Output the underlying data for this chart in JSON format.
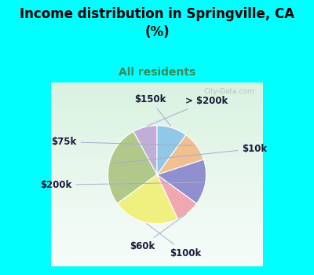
{
  "title": "Income distribution in Springville, CA\n(%)",
  "subtitle": "All residents",
  "title_color": "#000000",
  "subtitle_color": "#3a8a5a",
  "background_cyan": "#00ffff",
  "background_chart": "#e0f0e8",
  "labels": [
    "> $200k",
    "$10k",
    "$100k",
    "$60k",
    "$200k",
    "$75k",
    "$150k"
  ],
  "values": [
    8,
    27,
    22,
    8,
    15,
    10,
    10
  ],
  "colors": [
    "#c0aed8",
    "#b0c88a",
    "#f0f080",
    "#f0a8b0",
    "#9090d0",
    "#f0c090",
    "#90c8e8"
  ],
  "label_fontsize": 8.5,
  "title_fontsize": 12,
  "subtitle_fontsize": 10,
  "startangle": 90,
  "figsize": [
    4.0,
    3.5
  ],
  "dpi": 100,
  "watermark": "City-Data.com",
  "label_color": "#1a1a3a",
  "line_color": "#aaaacc",
  "chart_border_color": "#00ffff"
}
